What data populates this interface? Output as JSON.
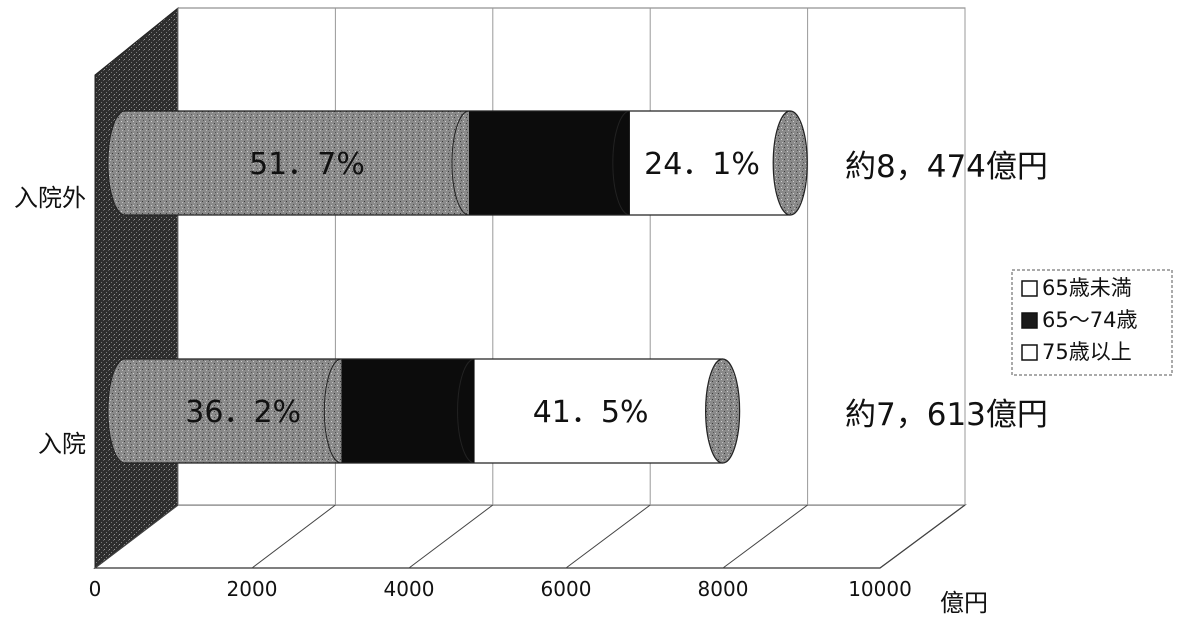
{
  "chart_data": {
    "type": "bar",
    "stacked": true,
    "orientation": "horizontal",
    "style": "3d-cylinder",
    "categories": [
      "入院外",
      "入院"
    ],
    "series": [
      {
        "name": "65歳未満",
        "values": [
          4382,
          2756
        ],
        "color": "#8f8f8f"
      },
      {
        "name": "65～74歳",
        "values": [
          2049,
          1697
        ],
        "color": "#0c0c0c"
      },
      {
        "name": "75歳以上",
        "values": [
          2043,
          3160
        ],
        "color": "#ffffff"
      }
    ],
    "segment_labels": [
      [
        "51．7%",
        "",
        "24．1%"
      ],
      [
        "36．2%",
        "",
        "41．5%"
      ]
    ],
    "totals": [
      "約8，474億円",
      "約7，613億円"
    ],
    "x_ticks": [
      "0",
      "2000",
      "4000",
      "6000",
      "8000",
      "10000"
    ],
    "xlim": [
      0,
      10000
    ],
    "xlabel": "億円",
    "legend_position": "right",
    "grid": true,
    "back_wall_color": "#3a3a3a"
  }
}
